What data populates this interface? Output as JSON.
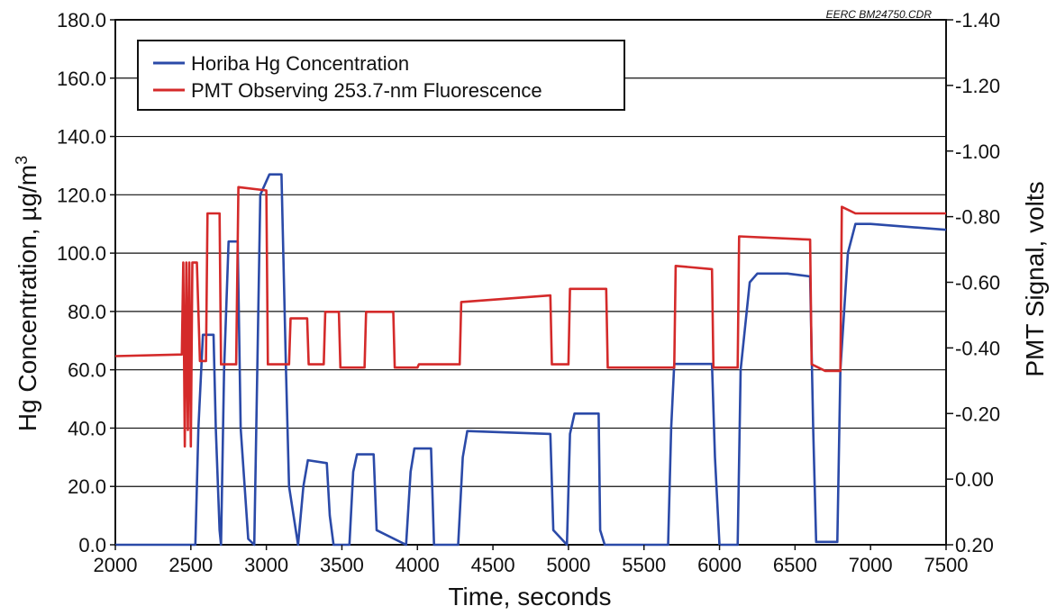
{
  "chart_data": {
    "type": "line",
    "title": "",
    "credit": "EERC BM24750.CDR",
    "xlabel": "Time, seconds",
    "ylabel": "Hg Concentration, µg/m",
    "ylabel_sup": "3",
    "y2label": "PMT Signal, volts",
    "xlim": [
      2000,
      7500
    ],
    "ylim": [
      0,
      180
    ],
    "y2lim": [
      0.2,
      -1.4
    ],
    "xticks": [
      "2000",
      "2500",
      "3000",
      "3500",
      "4000",
      "4500",
      "5000",
      "5500",
      "6000",
      "6500",
      "7000",
      "7500"
    ],
    "yticks": [
      "0.0",
      "20.0",
      "40.0",
      "60.0",
      "80.0",
      "100.0",
      "120.0",
      "140.0",
      "160.0",
      "180.0"
    ],
    "y2ticks": [
      "0.20",
      "0.00",
      "-0.20",
      "-0.40",
      "-0.60",
      "-0.80",
      "-1.00",
      "-1.20",
      "-1.40"
    ],
    "grid": "horizontal",
    "legend": "top-left",
    "series": [
      {
        "name": "Horiba Hg Concentration",
        "color": "#2b4aa8",
        "axis": "left",
        "x": [
          2000,
          2530,
          2550,
          2580,
          2650,
          2665,
          2690,
          2700,
          2720,
          2750,
          2810,
          2830,
          2880,
          2920,
          2960,
          3020,
          3100,
          3130,
          3150,
          3210,
          3245,
          3275,
          3400,
          3420,
          3445,
          3550,
          3575,
          3600,
          3710,
          3730,
          3925,
          3955,
          3980,
          4090,
          4110,
          4270,
          4300,
          4330,
          4600,
          4880,
          4900,
          4990,
          5010,
          5040,
          5200,
          5210,
          5240,
          5260,
          5660,
          5680,
          5700,
          5950,
          5970,
          6000,
          6120,
          6140,
          6200,
          6250,
          6450,
          6600,
          6620,
          6640,
          6780,
          6800,
          6850,
          6900,
          7000,
          7500
        ],
        "y": [
          0,
          0,
          40,
          72,
          72,
          40,
          5,
          0,
          60,
          104,
          104,
          40,
          2,
          0,
          120,
          127,
          127,
          60,
          20,
          0,
          20,
          29,
          28,
          10,
          0,
          0,
          25,
          31,
          31,
          5,
          0,
          25,
          33,
          33,
          0,
          0,
          30,
          39,
          38.5,
          38,
          5,
          0,
          38,
          45,
          45,
          5,
          0,
          0,
          0,
          40,
          62,
          62,
          30,
          0,
          0,
          60,
          90,
          93,
          93,
          92,
          40,
          1,
          1,
          60,
          100,
          110,
          110,
          108
        ]
      },
      {
        "name": "PMT Observing 253.7-nm Fluorescence",
        "color": "#d42a2a",
        "axis": "right",
        "x": [
          2000,
          2440,
          2450,
          2460,
          2470,
          2480,
          2490,
          2500,
          2510,
          2520,
          2540,
          2560,
          2600,
          2610,
          2690,
          2700,
          2730,
          2800,
          2815,
          3000,
          3010,
          3050,
          3150,
          3160,
          3270,
          3280,
          3380,
          3390,
          3480,
          3490,
          3650,
          3660,
          3840,
          3850,
          4000,
          4010,
          4280,
          4290,
          4880,
          4890,
          5000,
          5010,
          5250,
          5260,
          5700,
          5710,
          5950,
          5960,
          6120,
          6130,
          6600,
          6610,
          6700,
          6800,
          6810,
          6900,
          7000,
          7500
        ],
        "y": [
          -0.375,
          -0.38,
          -0.66,
          -0.1,
          -0.66,
          -0.15,
          -0.66,
          -0.1,
          -0.66,
          -0.66,
          -0.66,
          -0.36,
          -0.36,
          -0.81,
          -0.81,
          -0.35,
          -0.35,
          -0.35,
          -0.89,
          -0.88,
          -0.35,
          -0.35,
          -0.35,
          -0.49,
          -0.49,
          -0.35,
          -0.35,
          -0.51,
          -0.51,
          -0.34,
          -0.34,
          -0.51,
          -0.51,
          -0.34,
          -0.34,
          -0.35,
          -0.35,
          -0.54,
          -0.56,
          -0.35,
          -0.35,
          -0.58,
          -0.58,
          -0.34,
          -0.34,
          -0.65,
          -0.64,
          -0.34,
          -0.34,
          -0.74,
          -0.73,
          -0.35,
          -0.33,
          -0.33,
          -0.83,
          -0.81,
          -0.81,
          -0.81
        ]
      }
    ]
  }
}
